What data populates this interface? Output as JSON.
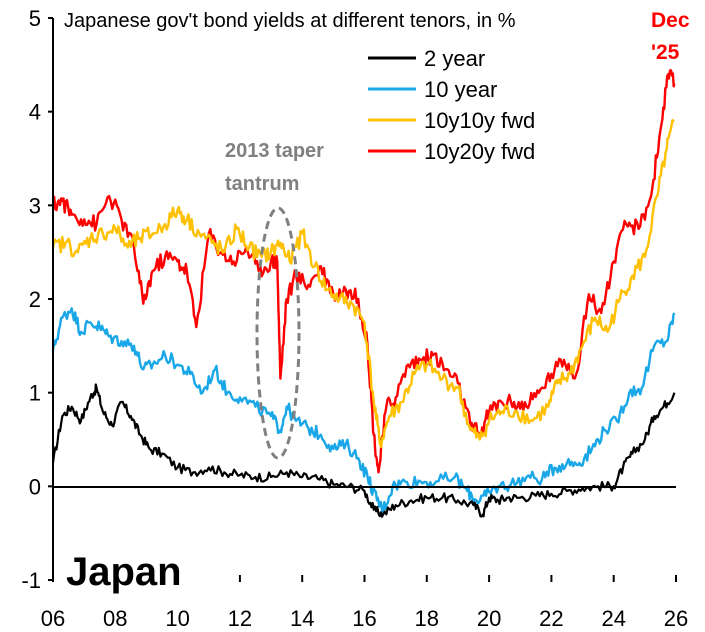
{
  "chart_data": {
    "type": "line",
    "title": "Japanese gov't bond yields at different tenors, in %",
    "xlim": [
      2006,
      2026
    ],
    "ylim": [
      -1,
      5
    ],
    "x_ticks": [
      "06",
      "08",
      "10",
      "12",
      "14",
      "16",
      "18",
      "20",
      "22",
      "24",
      "26"
    ],
    "y_ticks": [
      "-1",
      "0",
      "1",
      "2",
      "3",
      "4",
      "5"
    ],
    "grid": false,
    "legend_position": "top-right",
    "date_label": [
      "Dec",
      "'25"
    ],
    "annotation": [
      "2013 taper",
      "tantrum"
    ],
    "country_label": "Japan",
    "series": [
      {
        "name": "2 year",
        "color": "#000000",
        "x": [
          2006.0,
          2006.3,
          2006.6,
          2006.9,
          2007.2,
          2007.4,
          2007.6,
          2007.9,
          2008.2,
          2008.5,
          2008.8,
          2009.1,
          2009.5,
          2010.0,
          2010.5,
          2011.0,
          2011.5,
          2012.0,
          2012.5,
          2013.0,
          2013.5,
          2014.0,
          2014.5,
          2015.0,
          2015.5,
          2016.0,
          2016.3,
          2016.6,
          2017.0,
          2017.5,
          2018.0,
          2018.5,
          2019.0,
          2019.5,
          2019.8,
          2020.0,
          2020.3,
          2020.6,
          2021.0,
          2021.5,
          2022.0,
          2022.5,
          2023.0,
          2023.5,
          2024.0,
          2024.3,
          2024.6,
          2025.0,
          2025.3,
          2025.6,
          2025.95
        ],
        "y": [
          0.25,
          0.75,
          0.85,
          0.7,
          0.95,
          1.05,
          0.8,
          0.65,
          0.9,
          0.75,
          0.55,
          0.4,
          0.35,
          0.2,
          0.15,
          0.2,
          0.15,
          0.12,
          0.1,
          0.1,
          0.15,
          0.1,
          0.08,
          0.02,
          0.0,
          -0.05,
          -0.25,
          -0.3,
          -0.2,
          -0.15,
          -0.12,
          -0.12,
          -0.15,
          -0.2,
          -0.3,
          -0.12,
          -0.15,
          -0.12,
          -0.12,
          -0.1,
          -0.08,
          -0.05,
          -0.02,
          0.0,
          0.0,
          0.2,
          0.35,
          0.5,
          0.75,
          0.85,
          1.0
        ]
      },
      {
        "name": "10 year",
        "color": "#1aa7e8",
        "x": [
          2006.0,
          2006.3,
          2006.6,
          2006.9,
          2007.2,
          2007.5,
          2007.8,
          2008.2,
          2008.6,
          2008.9,
          2009.2,
          2009.6,
          2010.0,
          2010.4,
          2010.8,
          2011.2,
          2011.6,
          2012.0,
          2012.5,
          2013.0,
          2013.3,
          2013.5,
          2013.8,
          2014.2,
          2014.6,
          2015.0,
          2015.4,
          2015.8,
          2016.1,
          2016.4,
          2016.6,
          2016.9,
          2017.3,
          2017.8,
          2018.3,
          2018.9,
          2019.3,
          2019.6,
          2019.9,
          2020.3,
          2020.7,
          2021.2,
          2021.7,
          2022.1,
          2022.5,
          2022.9,
          2023.3,
          2023.7,
          2024.1,
          2024.5,
          2024.9,
          2025.3,
          2025.7,
          2025.95
        ],
        "y": [
          1.45,
          1.8,
          1.9,
          1.65,
          1.75,
          1.7,
          1.6,
          1.55,
          1.5,
          1.25,
          1.3,
          1.4,
          1.3,
          1.2,
          1.0,
          1.25,
          1.0,
          0.95,
          0.85,
          0.75,
          0.6,
          0.85,
          0.7,
          0.62,
          0.55,
          0.4,
          0.45,
          0.3,
          0.1,
          -0.15,
          -0.25,
          0.0,
          0.05,
          0.05,
          0.05,
          0.1,
          -0.05,
          -0.15,
          -0.1,
          0.0,
          0.02,
          0.1,
          0.08,
          0.2,
          0.25,
          0.25,
          0.4,
          0.6,
          0.7,
          1.0,
          1.05,
          1.5,
          1.55,
          1.85
        ]
      },
      {
        "name": "10y10y fwd",
        "color": "#ffc000",
        "x": [
          2006.0,
          2006.4,
          2006.8,
          2007.2,
          2007.6,
          2008.0,
          2008.4,
          2008.8,
          2009.2,
          2009.6,
          2010.0,
          2010.3,
          2010.7,
          2011.1,
          2011.5,
          2011.9,
          2012.3,
          2012.7,
          2013.0,
          2013.3,
          2013.6,
          2014.0,
          2014.4,
          2014.8,
          2015.2,
          2015.6,
          2016.0,
          2016.3,
          2016.5,
          2016.8,
          2017.2,
          2017.6,
          2018.0,
          2018.5,
          2019.0,
          2019.4,
          2019.7,
          2020.0,
          2020.4,
          2020.9,
          2021.4,
          2021.9,
          2022.2,
          2022.6,
          2023.0,
          2023.4,
          2023.8,
          2024.2,
          2024.6,
          2025.0,
          2025.4,
          2025.7,
          2025.95
        ],
        "y": [
          2.55,
          2.6,
          2.5,
          2.65,
          2.7,
          2.75,
          2.55,
          2.65,
          2.7,
          2.8,
          2.95,
          2.85,
          2.7,
          2.6,
          2.5,
          2.75,
          2.55,
          2.45,
          2.5,
          2.6,
          2.4,
          2.7,
          2.35,
          2.1,
          2.0,
          1.95,
          1.75,
          0.9,
          0.45,
          0.75,
          0.9,
          1.2,
          1.3,
          1.15,
          1.05,
          0.6,
          0.5,
          0.7,
          0.8,
          0.8,
          0.7,
          0.85,
          1.1,
          1.2,
          1.5,
          1.8,
          1.65,
          2.0,
          2.25,
          2.45,
          3.1,
          3.6,
          3.9
        ]
      },
      {
        "name": "10y20y fwd",
        "color": "#ff0000",
        "x": [
          2006.0,
          2006.3,
          2006.6,
          2007.0,
          2007.4,
          2007.8,
          2008.2,
          2008.6,
          2008.9,
          2009.2,
          2009.6,
          2010.0,
          2010.3,
          2010.6,
          2011.0,
          2011.4,
          2011.8,
          2012.2,
          2012.6,
          2013.0,
          2013.2,
          2013.3,
          2013.5,
          2013.8,
          2014.2,
          2014.6,
          2015.0,
          2015.4,
          2015.8,
          2016.1,
          2016.3,
          2016.45,
          2016.7,
          2017.0,
          2017.4,
          2017.8,
          2018.2,
          2018.6,
          2019.0,
          2019.4,
          2019.7,
          2020.0,
          2020.4,
          2020.8,
          2021.2,
          2021.6,
          2022.0,
          2022.4,
          2022.8,
          2023.2,
          2023.6,
          2024.0,
          2024.4,
          2024.8,
          2025.2,
          2025.5,
          2025.75,
          2025.95
        ],
        "y": [
          3.0,
          3.05,
          2.9,
          2.85,
          2.8,
          3.1,
          2.85,
          2.55,
          1.95,
          2.3,
          2.45,
          2.4,
          2.3,
          1.7,
          2.7,
          2.5,
          2.4,
          2.55,
          2.3,
          2.4,
          2.4,
          1.15,
          2.0,
          2.25,
          2.15,
          2.35,
          2.05,
          2.1,
          2.0,
          1.5,
          0.55,
          0.15,
          0.85,
          0.95,
          1.3,
          1.35,
          1.4,
          1.25,
          1.1,
          0.65,
          0.55,
          0.8,
          0.9,
          0.9,
          0.85,
          1.0,
          1.2,
          1.35,
          1.2,
          2.05,
          1.85,
          2.4,
          2.8,
          2.75,
          3.1,
          3.8,
          4.4,
          4.3
        ]
      }
    ]
  }
}
